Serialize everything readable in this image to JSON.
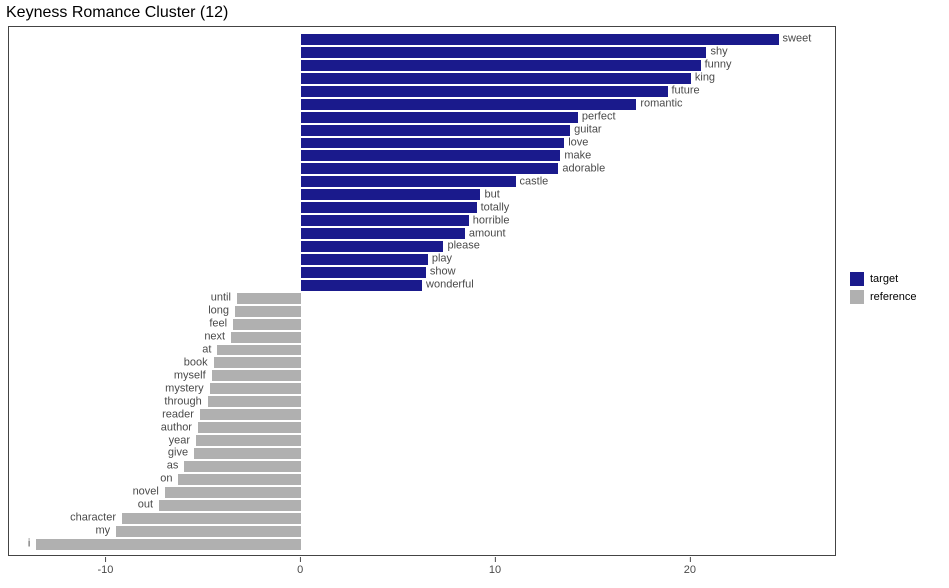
{
  "chart": {
    "type": "bar",
    "orientation": "horizontal",
    "title": "Keyness Romance Cluster (12)",
    "title_fontsize": 16,
    "title_color": "#000000",
    "background_color": "#ffffff",
    "panel_border_color": "#444444",
    "label_fontsize": 11,
    "label_color": "#4a4a4a",
    "axis_fontsize": 11,
    "axis_color": "#4a4a4a",
    "x_axis": {
      "min": -15,
      "max": 27.5,
      "ticks": [
        -10,
        0,
        10,
        20
      ]
    },
    "colors": {
      "target": "#1a1a8c",
      "reference": "#b0b0b0"
    },
    "legend": {
      "items": [
        {
          "key": "target",
          "label": "target",
          "color": "#1a1a8c"
        },
        {
          "key": "reference",
          "label": "reference",
          "color": "#b0b0b0"
        }
      ]
    },
    "bars": [
      {
        "label": "sweet",
        "value": 24.5,
        "group": "target"
      },
      {
        "label": "shy",
        "value": 20.8,
        "group": "target"
      },
      {
        "label": "funny",
        "value": 20.5,
        "group": "target"
      },
      {
        "label": "king",
        "value": 20.0,
        "group": "target"
      },
      {
        "label": "future",
        "value": 18.8,
        "group": "target"
      },
      {
        "label": "romantic",
        "value": 17.2,
        "group": "target"
      },
      {
        "label": "perfect",
        "value": 14.2,
        "group": "target"
      },
      {
        "label": "guitar",
        "value": 13.8,
        "group": "target"
      },
      {
        "label": "love",
        "value": 13.5,
        "group": "target"
      },
      {
        "label": "make",
        "value": 13.3,
        "group": "target"
      },
      {
        "label": "adorable",
        "value": 13.2,
        "group": "target"
      },
      {
        "label": "castle",
        "value": 11.0,
        "group": "target"
      },
      {
        "label": "but",
        "value": 9.2,
        "group": "target"
      },
      {
        "label": "totally",
        "value": 9.0,
        "group": "target"
      },
      {
        "label": "horrible",
        "value": 8.6,
        "group": "target"
      },
      {
        "label": "amount",
        "value": 8.4,
        "group": "target"
      },
      {
        "label": "please",
        "value": 7.3,
        "group": "target"
      },
      {
        "label": "play",
        "value": 6.5,
        "group": "target"
      },
      {
        "label": "show",
        "value": 6.4,
        "group": "target"
      },
      {
        "label": "wonderful",
        "value": 6.2,
        "group": "target"
      },
      {
        "label": "until",
        "value": -3.3,
        "group": "reference"
      },
      {
        "label": "long",
        "value": -3.4,
        "group": "reference"
      },
      {
        "label": "feel",
        "value": -3.5,
        "group": "reference"
      },
      {
        "label": "next",
        "value": -3.6,
        "group": "reference"
      },
      {
        "label": "at",
        "value": -4.3,
        "group": "reference"
      },
      {
        "label": "book",
        "value": -4.5,
        "group": "reference"
      },
      {
        "label": "myself",
        "value": -4.6,
        "group": "reference"
      },
      {
        "label": "mystery",
        "value": -4.7,
        "group": "reference"
      },
      {
        "label": "through",
        "value": -4.8,
        "group": "reference"
      },
      {
        "label": "reader",
        "value": -5.2,
        "group": "reference"
      },
      {
        "label": "author",
        "value": -5.3,
        "group": "reference"
      },
      {
        "label": "year",
        "value": -5.4,
        "group": "reference"
      },
      {
        "label": "give",
        "value": -5.5,
        "group": "reference"
      },
      {
        "label": "as",
        "value": -6.0,
        "group": "reference"
      },
      {
        "label": "on",
        "value": -6.3,
        "group": "reference"
      },
      {
        "label": "novel",
        "value": -7.0,
        "group": "reference"
      },
      {
        "label": "out",
        "value": -7.3,
        "group": "reference"
      },
      {
        "label": "character",
        "value": -9.2,
        "group": "reference"
      },
      {
        "label": "my",
        "value": -9.5,
        "group": "reference"
      },
      {
        "label": "i",
        "value": -13.6,
        "group": "reference"
      }
    ]
  }
}
